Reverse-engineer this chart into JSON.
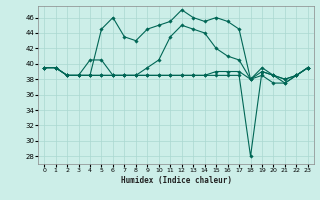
{
  "xlabel": "Humidex (Indice chaleur)",
  "bg_color": "#cceee8",
  "grid_color": "#aad8d0",
  "line_color": "#006655",
  "ylim": [
    27,
    47.5
  ],
  "xlim": [
    -0.5,
    23.5
  ],
  "yticks": [
    28,
    30,
    32,
    34,
    36,
    38,
    40,
    42,
    44,
    46
  ],
  "xticks": [
    0,
    1,
    2,
    3,
    4,
    5,
    6,
    7,
    8,
    9,
    10,
    11,
    12,
    13,
    14,
    15,
    16,
    17,
    18,
    19,
    20,
    21,
    22,
    23
  ],
  "series1_y": [
    39.5,
    39.5,
    38.5,
    38.5,
    38.5,
    44.5,
    46.0,
    43.5,
    43.0,
    44.5,
    45.0,
    45.5,
    47.0,
    46.0,
    45.5,
    46.0,
    45.5,
    44.5,
    38.0,
    39.5,
    38.5,
    38.0,
    38.5,
    39.5
  ],
  "series2_y": [
    39.5,
    39.5,
    38.5,
    38.5,
    38.5,
    38.5,
    38.5,
    38.5,
    38.5,
    38.5,
    38.5,
    38.5,
    38.5,
    38.5,
    38.5,
    39.0,
    39.0,
    39.0,
    38.0,
    39.0,
    38.5,
    38.0,
    38.5,
    39.5
  ],
  "series3_y": [
    39.5,
    39.5,
    38.5,
    38.5,
    40.5,
    40.5,
    38.5,
    38.5,
    38.5,
    39.5,
    40.5,
    43.5,
    45.0,
    44.5,
    44.0,
    42.0,
    41.0,
    40.5,
    38.0,
    38.5,
    37.5,
    37.5,
    38.5,
    39.5
  ],
  "series4_y": [
    39.5,
    39.5,
    38.5,
    38.5,
    38.5,
    38.5,
    38.5,
    38.5,
    38.5,
    38.5,
    38.5,
    38.5,
    38.5,
    38.5,
    38.5,
    38.5,
    38.5,
    38.5,
    28.0,
    39.0,
    38.5,
    37.5,
    38.5,
    39.5
  ]
}
